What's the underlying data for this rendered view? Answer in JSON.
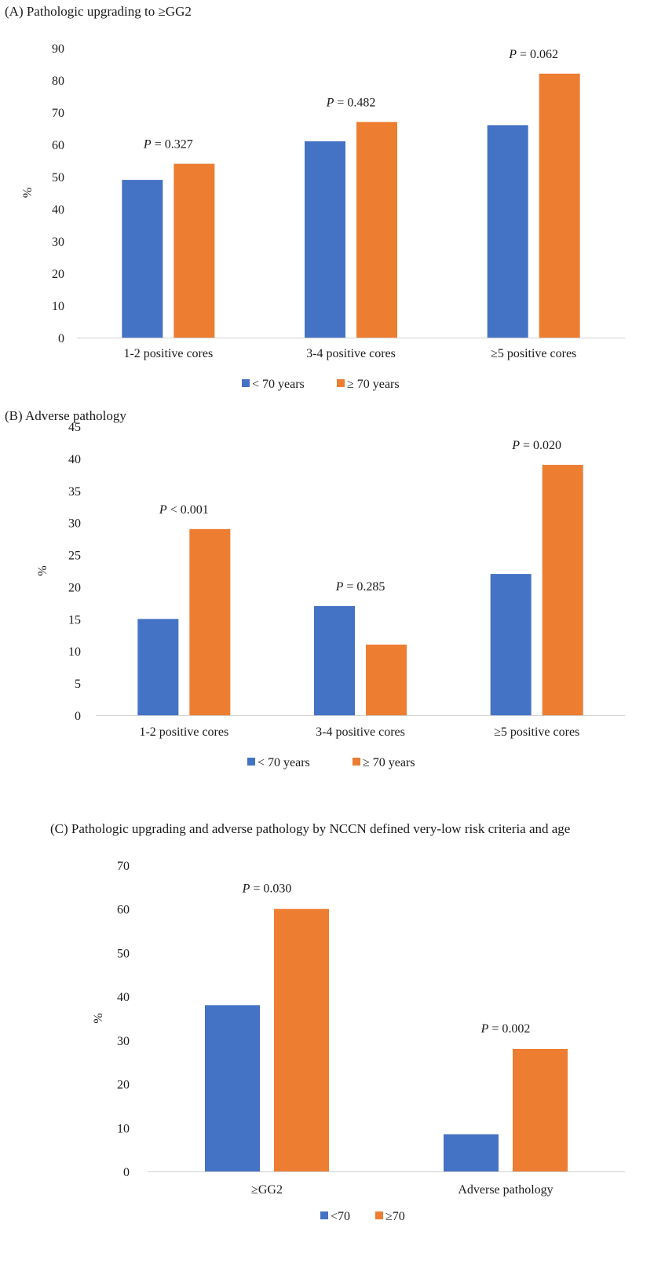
{
  "chart_data": [
    {
      "type": "bar",
      "title": "(A) Pathologic upgrading to ≥GG2",
      "ylabel": "%",
      "ylim": [
        0,
        90
      ],
      "yticks": [
        0,
        10,
        20,
        30,
        40,
        50,
        60,
        70,
        80,
        90
      ],
      "categories": [
        "1-2 positive cores",
        "3-4 positive cores",
        "≥5 positive cores"
      ],
      "series": [
        {
          "name": "< 70 years",
          "color": "#4472C4",
          "values": [
            49,
            61,
            66
          ]
        },
        {
          "name": "≥ 70 years",
          "color": "#ED7D31",
          "values": [
            54,
            67,
            82
          ]
        }
      ],
      "annotations": [
        {
          "prefix": "P",
          "text": " = 0.327"
        },
        {
          "prefix": "P",
          "text": " = 0.482"
        },
        {
          "prefix": "P",
          "text": " = 0.062"
        }
      ],
      "grid": false,
      "legend": "bottom"
    },
    {
      "type": "bar",
      "title": "(B) Adverse pathology",
      "ylabel": "%",
      "ylim": [
        0,
        45
      ],
      "yticks": [
        0,
        5,
        10,
        15,
        20,
        25,
        30,
        35,
        40,
        45
      ],
      "categories": [
        "1-2 positive cores",
        "3-4 positive cores",
        "≥5 positive cores"
      ],
      "series": [
        {
          "name": "< 70 years",
          "color": "#4472C4",
          "values": [
            15,
            17,
            22
          ]
        },
        {
          "name": "≥ 70 years",
          "color": "#ED7D31",
          "values": [
            29,
            11,
            39
          ]
        }
      ],
      "annotations": [
        {
          "prefix": "P",
          "text": " < 0.001"
        },
        {
          "prefix": "P",
          "text": " = 0.285"
        },
        {
          "prefix": "P",
          "text": " = 0.020"
        }
      ],
      "grid": false,
      "legend": "bottom"
    },
    {
      "type": "bar",
      "title": "(C) Pathologic upgrading and adverse pathology by NCCN defined very-low risk criteria and age",
      "ylabel": "%",
      "ylim": [
        0,
        70
      ],
      "yticks": [
        0,
        10,
        20,
        30,
        40,
        50,
        60,
        70
      ],
      "categories": [
        "≥GG2",
        "Adverse pathology"
      ],
      "series": [
        {
          "name": "<70",
          "color": "#4472C4",
          "values": [
            38,
            8.5
          ]
        },
        {
          "name": "≥70",
          "color": "#ED7D31",
          "values": [
            60,
            28
          ]
        }
      ],
      "annotations": [
        {
          "prefix": "P",
          "text": " = 0.030"
        },
        {
          "prefix": "P",
          "text": " = 0.002"
        }
      ],
      "grid": false,
      "legend": "bottom"
    }
  ]
}
